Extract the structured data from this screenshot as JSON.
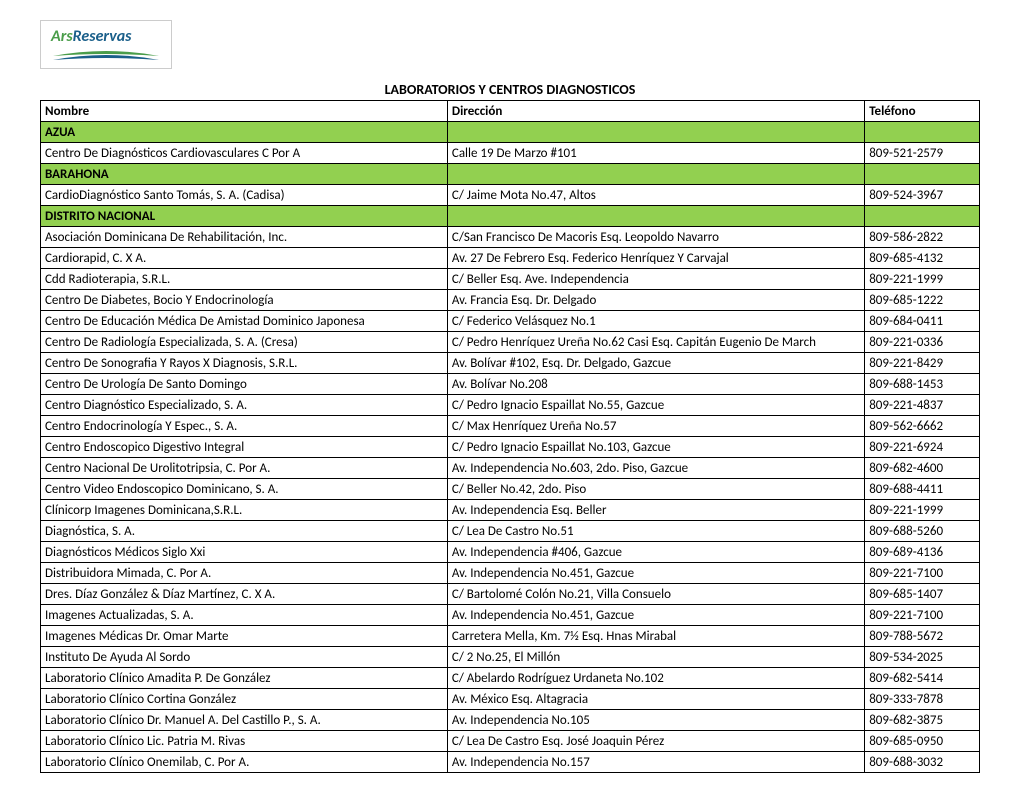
{
  "logo": {
    "ars": "Ars",
    "reservas": "Reservas"
  },
  "title": "LABORATORIOS Y CENTROS DIAGNOSTICOS",
  "columns": [
    "Nombre",
    "Dirección",
    "Teléfono"
  ],
  "colors": {
    "section_bg": "#92d050",
    "border": "#000000",
    "logo_green": "#4a9d4a",
    "logo_blue": "#1a5f8a"
  },
  "sections": [
    {
      "name": "AZUA",
      "rows": [
        [
          "Centro De Diagnósticos Cardiovasculares C Por A",
          "Calle 19 De Marzo  #101",
          "809-521-2579"
        ]
      ]
    },
    {
      "name": "BARAHONA",
      "rows": [
        [
          "CardioDiagnóstico Santo Tomás, S. A. (Cadisa)",
          "C/ Jaime Mota No.47, Altos",
          "809-524-3967"
        ]
      ]
    },
    {
      "name": "DISTRITO NACIONAL",
      "rows": [
        [
          "Asociación Dominicana De Rehabilitación, Inc.",
          "C/San Francisco De Macoris Esq. Leopoldo Navarro",
          "809-586-2822"
        ],
        [
          "Cardiorapid,  C.  X  A.",
          "Av. 27 De Febrero Esq. Federico Henríquez Y Carvajal",
          "809-685-4132"
        ],
        [
          "Cdd Radioterapia, S.R.L.",
          "C/ Beller Esq. Ave. Independencia",
          "809-221-1999"
        ],
        [
          "Centro De Diabetes, Bocio Y Endocrinología",
          "Av. Francia  Esq. Dr. Delgado",
          "809-685-1222"
        ],
        [
          "Centro De Educación Médica De Amistad Dominico Japonesa",
          "C/ Federico Velásquez No.1",
          "809-684-0411"
        ],
        [
          "Centro De Radiología Especializada, S. A. (Cresa)",
          "C/ Pedro Henríquez Ureña No.62 Casi Esq. Capitán Eugenio De March",
          "809-221-0336"
        ],
        [
          "Centro De Sonografia Y Rayos X Diagnosis, S.R.L.",
          "Av. Bolívar #102, Esq. Dr. Delgado, Gazcue",
          "809-221-8429"
        ],
        [
          "Centro De Urología De Santo Domingo",
          "Av. Bolívar No.208",
          "809-688-1453"
        ],
        [
          "Centro Diagnóstico Especializado, S. A.",
          "C/ Pedro Ignacio Espaillat No.55, Gazcue",
          "809-221-4837"
        ],
        [
          "Centro Endocrinología Y Espec., S. A.",
          "C/ Max Henríquez Ureña No.57",
          "809-562-6662"
        ],
        [
          "Centro Endoscopico Digestivo Integral",
          "C/ Pedro Ignacio Espaillat No.103, Gazcue",
          "809-221-6924"
        ],
        [
          "Centro Nacional De Urolitotripsia, C. Por A.",
          "Av. Independencia No.603, 2do. Piso, Gazcue",
          "809-682-4600"
        ],
        [
          "Centro Video Endoscopico Dominicano, S. A.",
          "C/ Beller No.42, 2do. Piso",
          "809-688-4411"
        ],
        [
          "Clínicorp Imagenes Dominicana,S.R.L.",
          "Av. Independencia Esq. Beller",
          "809-221-1999"
        ],
        [
          "Diagnóstica, S. A.",
          "C/ Lea De Castro No.51",
          "809-688-5260"
        ],
        [
          "Diagnósticos Médicos  Siglo Xxi",
          "Av. Independencia #406, Gazcue",
          "809-689-4136"
        ],
        [
          "Distribuidora Mimada, C. Por A.",
          "Av. Independencia No.451, Gazcue",
          "809-221-7100"
        ],
        [
          "Dres. Díaz González & Díaz Martínez, C. X A.",
          "C/ Bartolomé Colón No.21, Villa Consuelo",
          "809-685-1407"
        ],
        [
          "Imagenes Actualizadas,  S. A.",
          "Av. Independencia No.451, Gazcue",
          "809-221-7100"
        ],
        [
          "Imagenes Médicas Dr. Omar Marte",
          "Carretera Mella, Km. 7½ Esq. Hnas Mirabal",
          "809-788-5672"
        ],
        [
          "Instituto De Ayuda Al Sordo",
          "C/ 2 No.25, El Millón",
          "809-534-2025"
        ],
        [
          "Laboratorio Clínico Amadita P. De González",
          "C/ Abelardo Rodríguez Urdaneta No.102",
          "809-682-5414"
        ],
        [
          "Laboratorio Clínico Cortina González",
          "Av. México Esq.  Altagracia",
          "809-333-7878"
        ],
        [
          "Laboratorio Clínico Dr. Manuel A. Del Castillo P., S. A.",
          "Av. Independencia No.105",
          "809-682-3875"
        ],
        [
          "Laboratorio Clínico Lic. Patria M. Rivas",
          "C/ Lea De Castro  Esq. José Joaquin Pérez",
          "809-685-0950"
        ],
        [
          "Laboratorio Clínico Onemilab, C. Por A.",
          "Av. Independencia No.157",
          "809-688-3032"
        ]
      ]
    }
  ]
}
